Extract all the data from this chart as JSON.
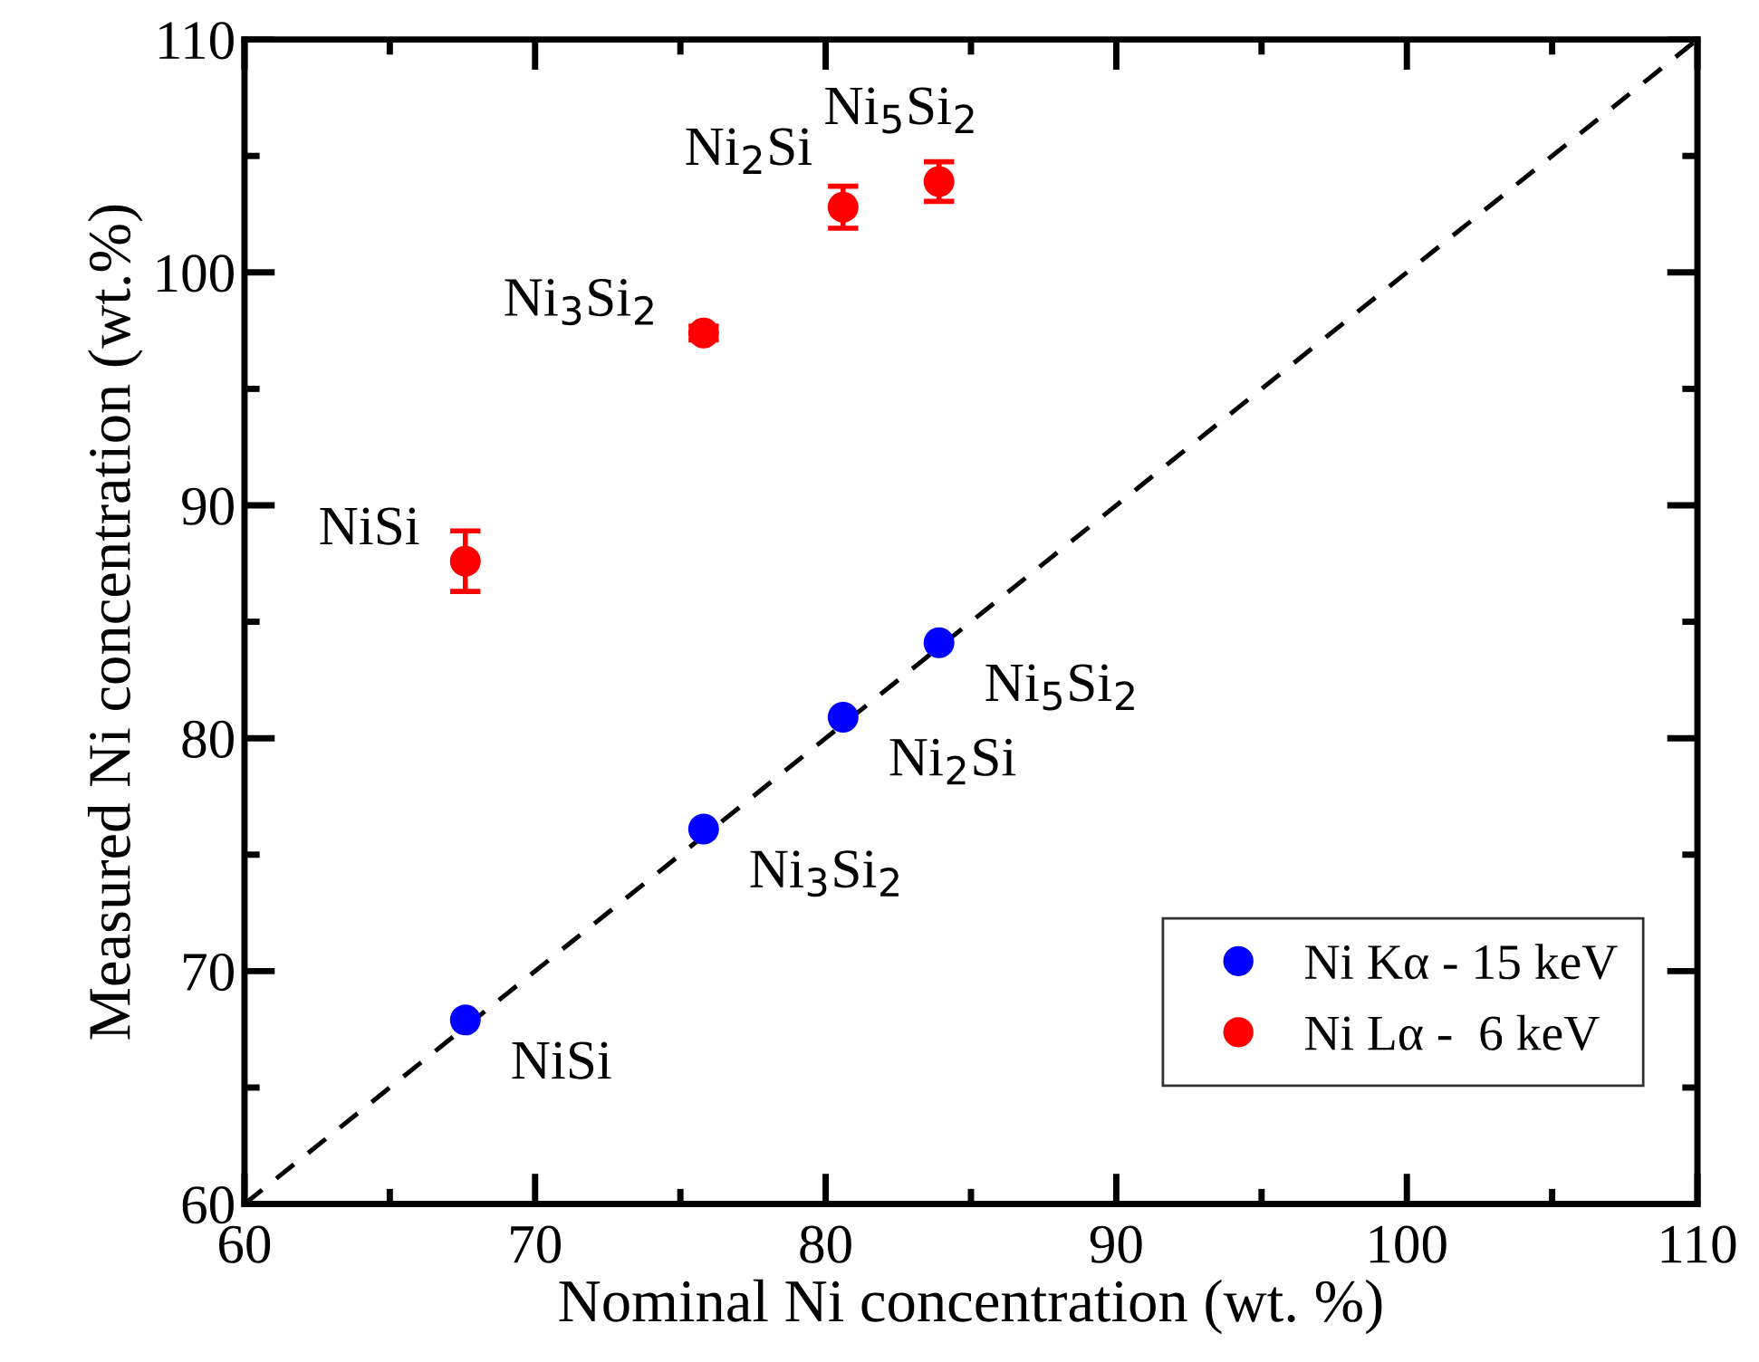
{
  "chart_data": {
    "type": "scatter",
    "xlabel": "Nominal Ni concentration (wt. %)",
    "ylabel": "Measured Ni concentration (wt.%)",
    "xlim": [
      60,
      110
    ],
    "ylim": [
      60,
      110
    ],
    "xticks": [
      60,
      70,
      80,
      90,
      100,
      110
    ],
    "yticks": [
      60,
      70,
      80,
      90,
      100,
      110
    ],
    "grid": false,
    "legend": "bottom right",
    "marker": "circle",
    "series": [
      {
        "name": "Ni Kα - 15 keV",
        "color": "#0000ff",
        "x": [
          67.6,
          75.8,
          80.6,
          83.9
        ],
        "values": [
          67.9,
          76.1,
          80.9,
          84.1
        ]
      },
      {
        "name": "Ni Lα -  6 keV",
        "color": "#ff0000",
        "x": [
          67.6,
          75.8,
          80.6,
          83.9
        ],
        "values": [
          87.6,
          97.4,
          102.8,
          103.9
        ],
        "errors": [
          1.3,
          0.3,
          0.9,
          0.85
        ]
      },
      {
        "type": "line",
        "color": "#000000",
        "line_style": "dashed",
        "marker": "none",
        "x": [
          60,
          110
        ],
        "values": [
          60,
          110
        ]
      }
    ],
    "annotations": [
      {
        "text": "NiSi",
        "x": 67.6,
        "y": 67.9
      },
      {
        "text": "Ni$_{3}$Si$_{2}$",
        "x": 75.8,
        "y": 76.1
      },
      {
        "text": "Ni$_{2}$Si",
        "x": 80.6,
        "y": 80.9
      },
      {
        "text": "Ni$_{5}$Si$_{2}$",
        "x": 83.9,
        "y": 84.1
      },
      {
        "text": "NiSi",
        "x": 67.6,
        "y": 87.6
      },
      {
        "text": "Ni$_{3}$Si$_{2}$",
        "x": 75.8,
        "y": 97.4
      },
      {
        "text": "Ni$_{2}$Si",
        "x": 80.6,
        "y": 102.8
      },
      {
        "text": "Ni$_{5}$Si$_{2}$",
        "x": 83.9,
        "y": 103.9
      }
    ]
  }
}
